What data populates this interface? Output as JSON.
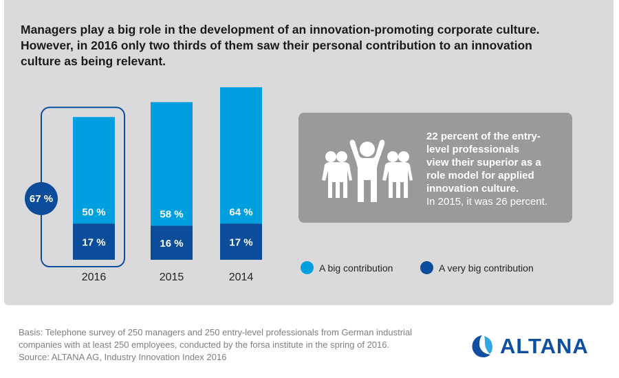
{
  "colors": {
    "big": "#009fe0",
    "very_big": "#0b4c9b",
    "panel": "#dadadc",
    "infobox": "#9a9a9c"
  },
  "title": {
    "line1": "Managers play a big role in the development of an innovation-promoting corporate culture.",
    "line2": "However, in 2016 only two thirds of them saw their personal contribution to an innovation",
    "line3": "culture as being relevant."
  },
  "chart_data": {
    "type": "bar",
    "stacked": true,
    "title": "Managers' personal contribution to an innovation culture",
    "categories": [
      "2016",
      "2015",
      "2014"
    ],
    "series": [
      {
        "name": "A very big contribution",
        "values": [
          17,
          16,
          17
        ]
      },
      {
        "name": "A big contribution",
        "values": [
          50,
          58,
          64
        ]
      }
    ],
    "totals": [
      67,
      74,
      81
    ],
    "highlight": {
      "category": "2016",
      "label": "67 %"
    },
    "value_labels": {
      "big": [
        "50 %",
        "58 %",
        "64 %"
      ],
      "very_big": [
        "17 %",
        "16 %",
        "17 %"
      ]
    },
    "xlabel": "",
    "ylabel": "",
    "ylim": [
      0,
      100
    ],
    "grid": false,
    "legend_position": "bottom-right"
  },
  "legend": {
    "big_label": "A big contribution",
    "very_big_label": "A very big contribution"
  },
  "infobox": {
    "icon": "group-people-icon",
    "bold_text": "22 percent of the entry-level professionals view their superior as a role model for applied innovation culture.",
    "bold_lines": [
      "22 percent of the entry-",
      "level professionals",
      "view their superior as a",
      "role model for applied",
      "innovation culture."
    ],
    "regular_text": "In 2015, it was 26 percent."
  },
  "footer": {
    "line1": "Basis: Telephone survey of 250 managers and 250 entry-level professionals from German industrial",
    "line2": "companies with at least 250 employees, conducted by the forsa institute in the spring of 2016.",
    "line3": "Source: ALTANA AG, Industry Innovation Index 2016"
  },
  "logo": {
    "text": "ALTANA"
  }
}
